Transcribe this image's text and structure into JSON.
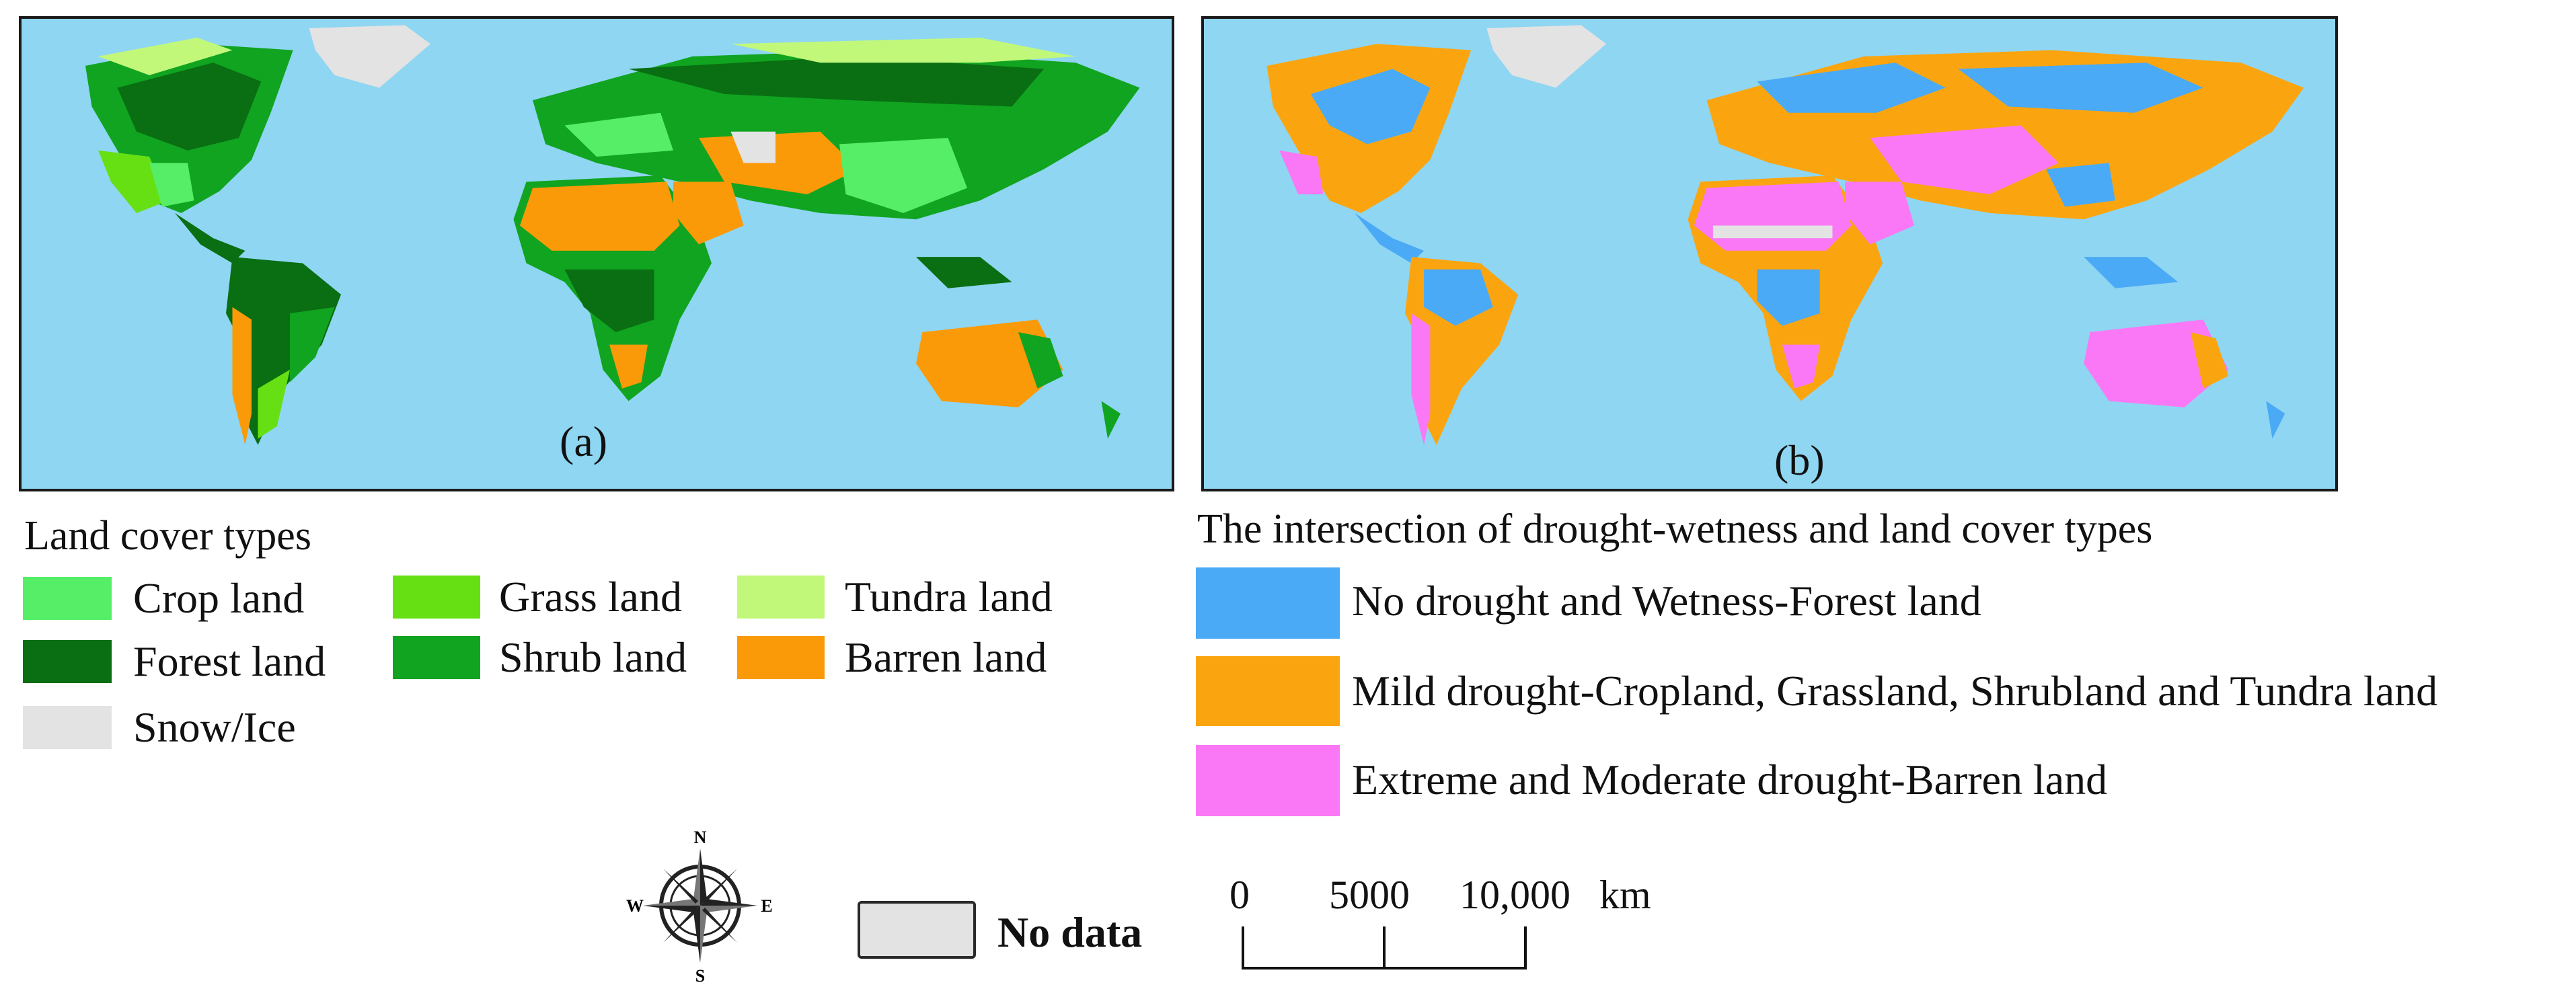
{
  "panel_a": {
    "label": "(a)",
    "legend_title": "Land cover types",
    "legend": [
      {
        "label": "Crop land",
        "color": "#55ee66"
      },
      {
        "label": "Forest land",
        "color": "#0a6e12"
      },
      {
        "label": "Snow/Ice",
        "color": "#e3e3e3"
      },
      {
        "label": "Grass land",
        "color": "#66e012"
      },
      {
        "label": "Shrub land",
        "color": "#10a420"
      },
      {
        "label": "Tundra land",
        "color": "#c2f87a"
      },
      {
        "label": "Barren land",
        "color": "#fa9a08"
      }
    ]
  },
  "panel_b": {
    "label": "(b)",
    "legend_title": "The intersection of drought-wetness and land cover types",
    "legend": [
      {
        "label": "No drought and Wetness-Forest land",
        "color": "#4aaaf5"
      },
      {
        "label": "Mild drought-Cropland, Grassland, Shrubland and Tundra land",
        "color": "#faa510"
      },
      {
        "label": "Extreme and Moderate drought-Barren land",
        "color": "#fa78f5"
      }
    ]
  },
  "compass": {
    "n": "N",
    "s": "S",
    "e": "E",
    "w": "W"
  },
  "no_data": {
    "label": "No data",
    "color": "#e3e3e3"
  },
  "scale_bar": {
    "ticks": [
      "0",
      "5000",
      "10,000"
    ],
    "unit": "km"
  },
  "ocean_color": "#8fd6f2"
}
